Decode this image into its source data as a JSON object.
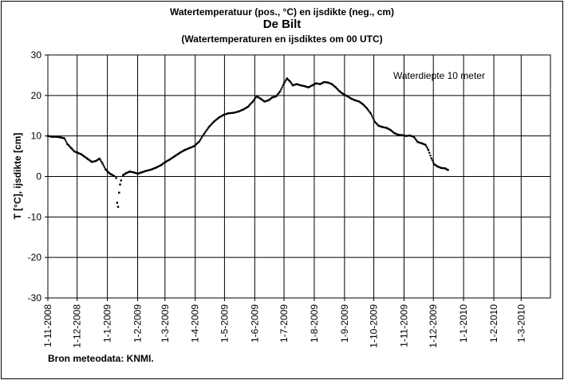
{
  "header": {
    "title": "Watertemperatuur  (pos., °C) en ijsdikte (neg., cm)",
    "station": "De Bilt",
    "subtitle": "(Watertemperaturen  en ijsdiktes om 00 UTC)"
  },
  "footer": {
    "source": "Bron meteodata:  KNMI."
  },
  "chart_data": {
    "type": "scatter",
    "title": "Watertemperatuur  (pos., °C) en ijsdikte (neg., cm)",
    "ylabel": "T [°C], ijsdikte [cm]",
    "xlabel": "",
    "ylim": [
      -30,
      30
    ],
    "yticks": [
      -30,
      -20,
      -10,
      0,
      10,
      20,
      30
    ],
    "xticks": [
      "1-11-2008",
      "1-12-2008",
      "1-1-2009",
      "1-2-2009",
      "1-3-2009",
      "1-4-2009",
      "1-5-2009",
      "1-6-2009",
      "1-7-2009",
      "1-8-2009",
      "1-9-2009",
      "1-10-2009",
      "1-11-2009",
      "1-12-2009",
      "1-1-2010",
      "1-2-2010",
      "1-3-2010"
    ],
    "xlim": [
      "2008-11-01",
      "2010-03-31"
    ],
    "grid": true,
    "annotation": "Waterdiepte 10 meter",
    "series": [
      {
        "points": [
          [
            "2008-11-01",
            10.0
          ],
          [
            "2008-11-05",
            9.8
          ],
          [
            "2008-11-10",
            9.8
          ],
          [
            "2008-11-15",
            9.6
          ],
          [
            "2008-11-18",
            9.4
          ],
          [
            "2008-11-21",
            8.0
          ],
          [
            "2008-11-25",
            7.0
          ],
          [
            "2008-11-28",
            6.2
          ],
          [
            "2008-12-01",
            5.9
          ],
          [
            "2008-12-05",
            5.5
          ],
          [
            "2008-12-08",
            5.0
          ],
          [
            "2008-12-12",
            4.3
          ],
          [
            "2008-12-16",
            3.6
          ],
          [
            "2008-12-20",
            3.8
          ],
          [
            "2008-12-24",
            4.4
          ],
          [
            "2008-12-27",
            3.2
          ],
          [
            "2008-12-30",
            1.8
          ],
          [
            "2009-01-02",
            1.0
          ],
          [
            "2009-01-05",
            0.5
          ],
          [
            "2009-01-08",
            0.1
          ],
          [
            "2009-01-10",
            -0.4
          ],
          [
            "2009-01-11",
            -6.5
          ],
          [
            "2009-01-12",
            -7.5
          ],
          [
            "2009-01-13",
            -4.0
          ],
          [
            "2009-01-14",
            -2.0
          ],
          [
            "2009-01-15",
            -1.0
          ],
          [
            "2009-01-17",
            0.3
          ],
          [
            "2009-01-20",
            0.8
          ],
          [
            "2009-01-24",
            1.2
          ],
          [
            "2009-01-28",
            1.0
          ],
          [
            "2009-02-01",
            0.7
          ],
          [
            "2009-02-05",
            1.0
          ],
          [
            "2009-02-10",
            1.4
          ],
          [
            "2009-02-15",
            1.7
          ],
          [
            "2009-02-20",
            2.2
          ],
          [
            "2009-02-25",
            2.8
          ],
          [
            "2009-03-01",
            3.5
          ],
          [
            "2009-03-06",
            4.2
          ],
          [
            "2009-03-11",
            5.0
          ],
          [
            "2009-03-16",
            5.8
          ],
          [
            "2009-03-21",
            6.5
          ],
          [
            "2009-03-26",
            7.0
          ],
          [
            "2009-03-31",
            7.5
          ],
          [
            "2009-04-05",
            8.6
          ],
          [
            "2009-04-10",
            10.5
          ],
          [
            "2009-04-15",
            12.2
          ],
          [
            "2009-04-20",
            13.5
          ],
          [
            "2009-04-25",
            14.5
          ],
          [
            "2009-04-30",
            15.2
          ],
          [
            "2009-05-05",
            15.6
          ],
          [
            "2009-05-10",
            15.7
          ],
          [
            "2009-05-15",
            16.0
          ],
          [
            "2009-05-20",
            16.5
          ],
          [
            "2009-05-25",
            17.2
          ],
          [
            "2009-05-30",
            18.5
          ],
          [
            "2009-06-03",
            19.8
          ],
          [
            "2009-06-07",
            19.2
          ],
          [
            "2009-06-11",
            18.5
          ],
          [
            "2009-06-15",
            18.8
          ],
          [
            "2009-06-19",
            19.5
          ],
          [
            "2009-06-23",
            19.8
          ],
          [
            "2009-06-27",
            21.0
          ],
          [
            "2009-07-01",
            23.0
          ],
          [
            "2009-07-04",
            24.2
          ],
          [
            "2009-07-07",
            23.5
          ],
          [
            "2009-07-10",
            22.5
          ],
          [
            "2009-07-14",
            22.8
          ],
          [
            "2009-07-18",
            22.5
          ],
          [
            "2009-07-22",
            22.3
          ],
          [
            "2009-07-26",
            22.0
          ],
          [
            "2009-07-30",
            22.5
          ],
          [
            "2009-08-03",
            23.0
          ],
          [
            "2009-08-07",
            22.8
          ],
          [
            "2009-08-11",
            23.3
          ],
          [
            "2009-08-15",
            23.2
          ],
          [
            "2009-08-19",
            22.8
          ],
          [
            "2009-08-23",
            22.0
          ],
          [
            "2009-08-27",
            21.0
          ],
          [
            "2009-08-31",
            20.3
          ],
          [
            "2009-09-04",
            19.8
          ],
          [
            "2009-09-08",
            19.2
          ],
          [
            "2009-09-12",
            18.8
          ],
          [
            "2009-09-16",
            18.5
          ],
          [
            "2009-09-20",
            17.8
          ],
          [
            "2009-09-24",
            16.8
          ],
          [
            "2009-09-28",
            15.5
          ],
          [
            "2009-10-02",
            13.5
          ],
          [
            "2009-10-06",
            12.5
          ],
          [
            "2009-10-10",
            12.2
          ],
          [
            "2009-10-14",
            12.0
          ],
          [
            "2009-10-18",
            11.5
          ],
          [
            "2009-10-22",
            10.7
          ],
          [
            "2009-10-26",
            10.3
          ],
          [
            "2009-10-30",
            10.2
          ],
          [
            "2009-11-03",
            10.0
          ],
          [
            "2009-11-07",
            10.1
          ],
          [
            "2009-11-11",
            9.8
          ],
          [
            "2009-11-15",
            8.5
          ],
          [
            "2009-11-19",
            8.2
          ],
          [
            "2009-11-23",
            7.8
          ],
          [
            "2009-11-26",
            6.5
          ],
          [
            "2009-11-29",
            4.5
          ],
          [
            "2009-12-02",
            3.0
          ],
          [
            "2009-12-05",
            2.5
          ],
          [
            "2009-12-09",
            2.1
          ],
          [
            "2009-12-13",
            2.0
          ],
          [
            "2009-12-16",
            1.6
          ]
        ]
      }
    ]
  }
}
